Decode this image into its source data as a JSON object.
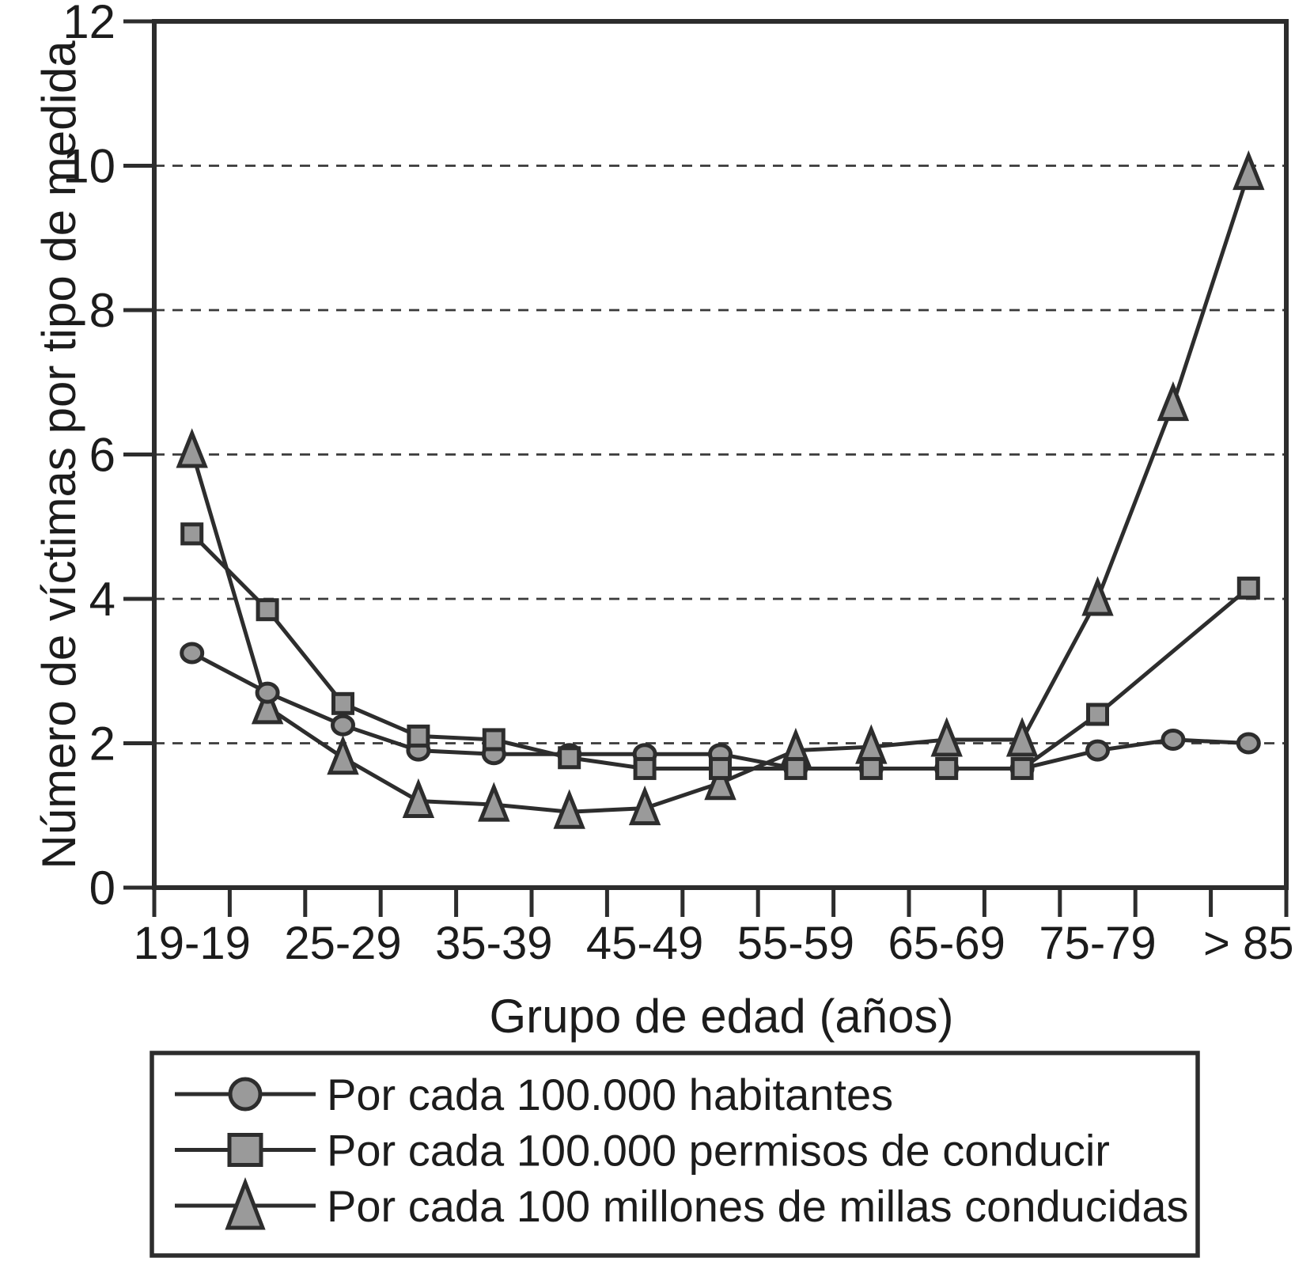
{
  "figure": {
    "background": "#ffffff"
  },
  "chart_data": {
    "type": "line",
    "title": "",
    "xlabel": "Grupo de edad (años)",
    "ylabel": "Número de víctimas por tipo de medida",
    "ylim": [
      0,
      12
    ],
    "ytick_values": [
      0,
      2,
      4,
      6,
      8,
      10,
      12
    ],
    "gridlines_y": [
      2,
      4,
      6,
      8,
      10
    ],
    "grid_style": "dashed",
    "legend_position": "bottom-box",
    "n_groups": 15,
    "categories": [
      "19-19",
      "",
      "25-29",
      "",
      "35-39",
      "",
      "45-49",
      "",
      "55-59",
      "",
      "65-69",
      "",
      "75-79",
      "",
      "> 85"
    ],
    "series": [
      {
        "name": "Por cada 100.000 habitantes",
        "marker": "circle",
        "z": 1,
        "values": [
          3.25,
          2.7,
          2.25,
          1.9,
          1.85,
          1.85,
          1.85,
          1.85,
          1.65,
          1.65,
          1.65,
          1.65,
          1.9,
          2.05,
          2.0
        ]
      },
      {
        "name": "Por cada 100.000 permisos de conducir",
        "marker": "square",
        "z": 2,
        "values": [
          4.9,
          3.85,
          2.55,
          2.1,
          2.05,
          1.8,
          1.65,
          1.65,
          1.65,
          1.65,
          1.65,
          1.65,
          2.4,
          null,
          4.15
        ]
      },
      {
        "name": "Por cada 100 millones de millas conducidas",
        "marker": "triangle",
        "z": 0,
        "values": [
          6.05,
          2.5,
          1.8,
          1.2,
          1.15,
          1.05,
          1.1,
          1.45,
          1.9,
          1.95,
          2.05,
          2.05,
          4.0,
          6.7,
          9.9
        ]
      }
    ],
    "colors": {
      "ink": "#2d2d2d",
      "marker_fill": "#9a9a9a",
      "grid": "#3a3a3a",
      "text": "#1c1c1c",
      "background": "#ffffff"
    }
  }
}
